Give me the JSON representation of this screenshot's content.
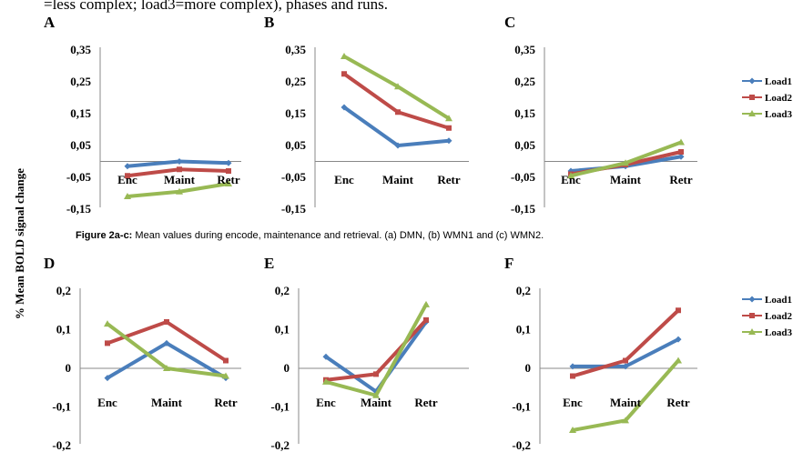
{
  "header_text": "=less complex; load3=more complex), phases and runs.",
  "y_axis_title": "% Mean BOLD signal change",
  "caption": {
    "bold": "Figure 2a-c:",
    "text": " Mean values during encode, maintenance and retrieval. (a) DMN, (b) WMN1 and (c) WMN2."
  },
  "colors": {
    "Load1": "#4a7ebb",
    "Load2": "#be4b48",
    "Load3": "#98b954"
  },
  "legend_top": [
    {
      "name": "Load1",
      "marker": "diamond"
    },
    {
      "name": "Load2",
      "marker": "square"
    },
    {
      "name": "Load3",
      "marker": "triangle"
    }
  ],
  "legend_bottom": [
    {
      "name": "Load1",
      "marker": "diamond"
    },
    {
      "name": "Load2",
      "marker": "square"
    },
    {
      "name": "Load3",
      "marker": "triangle"
    }
  ],
  "chart_data": [
    {
      "type": "line",
      "panel": "A",
      "categories": [
        "Enc",
        "Maint",
        "Retr"
      ],
      "yticks": [
        "0,35",
        "0,25",
        "0,15",
        "0,05",
        "-0,05",
        "-0,15"
      ],
      "ylim": [
        -0.15,
        0.35
      ],
      "series": [
        {
          "name": "Load1",
          "values": [
            -0.015,
            0.0,
            -0.005
          ]
        },
        {
          "name": "Load2",
          "values": [
            -0.045,
            -0.025,
            -0.03
          ]
        },
        {
          "name": "Load3",
          "values": [
            -0.11,
            -0.095,
            -0.07
          ]
        }
      ]
    },
    {
      "type": "line",
      "panel": "B",
      "categories": [
        "Enc",
        "Maint",
        "Retr"
      ],
      "yticks": [
        "0,35",
        "0,25",
        "0,15",
        "0,05",
        "-0,05",
        "-0,15"
      ],
      "ylim": [
        -0.15,
        0.35
      ],
      "series": [
        {
          "name": "Load1",
          "values": [
            0.17,
            0.05,
            0.065
          ]
        },
        {
          "name": "Load2",
          "values": [
            0.275,
            0.155,
            0.105
          ]
        },
        {
          "name": "Load3",
          "values": [
            0.33,
            0.235,
            0.135
          ]
        }
      ]
    },
    {
      "type": "line",
      "panel": "C",
      "categories": [
        "Enc",
        "Maint",
        "Retr"
      ],
      "yticks": [
        "0,35",
        "0,25",
        "0,15",
        "0,05",
        "-0,05",
        "-0,15"
      ],
      "ylim": [
        -0.15,
        0.35
      ],
      "series": [
        {
          "name": "Load1",
          "values": [
            -0.03,
            -0.015,
            0.015
          ]
        },
        {
          "name": "Load2",
          "values": [
            -0.04,
            -0.01,
            0.03
          ]
        },
        {
          "name": "Load3",
          "values": [
            -0.045,
            -0.005,
            0.06
          ]
        }
      ]
    },
    {
      "type": "line",
      "panel": "D",
      "categories": [
        "Enc",
        "Maint",
        "Retr"
      ],
      "yticks": [
        "0,2",
        "0,1",
        "0",
        "-0,1",
        "-0,2"
      ],
      "ylim": [
        -0.2,
        0.2
      ],
      "series": [
        {
          "name": "Load1",
          "values": [
            -0.025,
            0.065,
            -0.025
          ]
        },
        {
          "name": "Load2",
          "values": [
            0.065,
            0.12,
            0.02
          ]
        },
        {
          "name": "Load3",
          "values": [
            0.115,
            0.0,
            -0.02
          ]
        }
      ]
    },
    {
      "type": "line",
      "panel": "E",
      "categories": [
        "Enc",
        "Maint",
        "Retr"
      ],
      "yticks": [
        "0,2",
        "0,1",
        "0",
        "-0,1",
        "-0,2"
      ],
      "ylim": [
        -0.2,
        0.2
      ],
      "series": [
        {
          "name": "Load1",
          "values": [
            0.03,
            -0.06,
            0.12
          ]
        },
        {
          "name": "Load2",
          "values": [
            -0.03,
            -0.015,
            0.125
          ]
        },
        {
          "name": "Load3",
          "values": [
            -0.035,
            -0.07,
            0.165
          ]
        }
      ]
    },
    {
      "type": "line",
      "panel": "F",
      "categories": [
        "Enc",
        "Maint",
        "Retr"
      ],
      "yticks": [
        "0,2",
        "0,1",
        "0",
        "-0,1",
        "-0,2"
      ],
      "ylim": [
        -0.2,
        0.2
      ],
      "series": [
        {
          "name": "Load1",
          "values": [
            0.005,
            0.005,
            0.075
          ]
        },
        {
          "name": "Load2",
          "values": [
            -0.02,
            0.02,
            0.15
          ]
        },
        {
          "name": "Load3",
          "values": [
            -0.16,
            -0.135,
            0.02
          ]
        }
      ]
    }
  ]
}
